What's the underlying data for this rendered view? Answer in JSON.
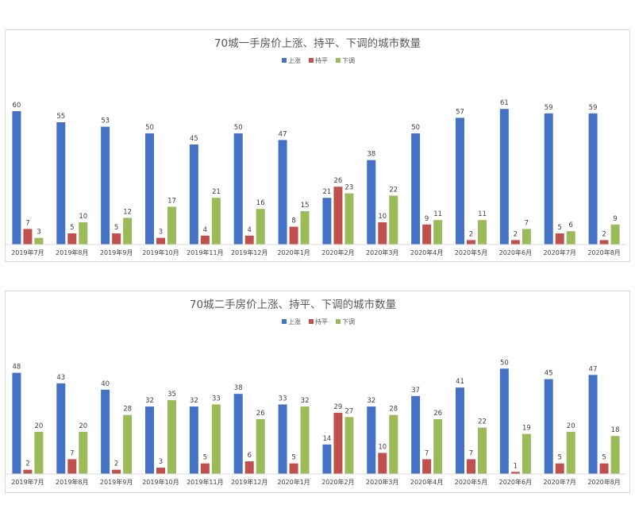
{
  "chart_data": [
    {
      "type": "bar",
      "title": "70城一手房价上涨、持平、下调的城市数量",
      "categories": [
        "2019年7月",
        "2019年8月",
        "2019年9月",
        "2019年10月",
        "2019年11月",
        "2019年12月",
        "2020年1月",
        "2020年2月",
        "2020年3月",
        "2020年4月",
        "2020年5月",
        "2020年6月",
        "2020年7月",
        "2020年8月"
      ],
      "series": [
        {
          "name": "上涨",
          "color": "#4472c4",
          "values": [
            60,
            55,
            53,
            50,
            45,
            50,
            47,
            21,
            38,
            50,
            57,
            61,
            59,
            59
          ]
        },
        {
          "name": "持平",
          "color": "#c0504d",
          "values": [
            7,
            5,
            5,
            3,
            4,
            4,
            8,
            26,
            10,
            9,
            2,
            2,
            5,
            2
          ]
        },
        {
          "name": "下调",
          "color": "#9bbb59",
          "values": [
            3,
            10,
            12,
            17,
            21,
            16,
            15,
            23,
            22,
            11,
            11,
            7,
            6,
            9
          ]
        }
      ],
      "ylim": [
        0,
        65
      ],
      "legend": "top-center",
      "grid": false
    },
    {
      "type": "bar",
      "title": "70城二手房价上涨、持平、下调的城市数量",
      "categories": [
        "2019年7月",
        "2019年8月",
        "2019年9月",
        "2019年10月",
        "2019年11月",
        "2019年12月",
        "2020年1月",
        "2020年2月",
        "2020年3月",
        "2020年4月",
        "2020年5月",
        "2020年6月",
        "2020年7月",
        "2020年8月"
      ],
      "series": [
        {
          "name": "上涨",
          "color": "#4472c4",
          "values": [
            48,
            43,
            40,
            32,
            32,
            38,
            33,
            14,
            32,
            37,
            41,
            50,
            45,
            47
          ]
        },
        {
          "name": "持平",
          "color": "#c0504d",
          "values": [
            2,
            7,
            2,
            3,
            5,
            6,
            5,
            29,
            10,
            7,
            7,
            1,
            5,
            5
          ]
        },
        {
          "name": "下调",
          "color": "#9bbb59",
          "values": [
            20,
            20,
            28,
            35,
            33,
            26,
            32,
            27,
            28,
            26,
            22,
            19,
            20,
            18
          ]
        }
      ],
      "ylim": [
        0,
        52
      ],
      "legend": "top-right",
      "grid": false
    }
  ]
}
